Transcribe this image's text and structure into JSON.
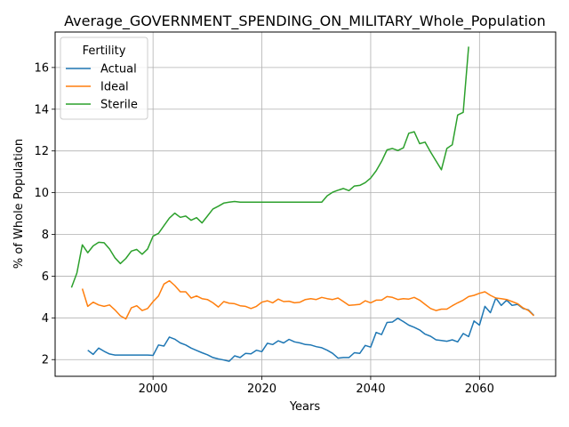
{
  "chart_data": {
    "type": "line",
    "title": "Average_GOVERNMENT_SPENDING_ON_MILITARY_Whole_Population",
    "xlabel": "Years",
    "ylabel": "% of Whole Population",
    "xlim": [
      1982,
      2074
    ],
    "ylim": [
      1.2,
      17.7
    ],
    "xticks": [
      2000,
      2020,
      2040,
      2060
    ],
    "yticks": [
      2,
      4,
      6,
      8,
      10,
      12,
      14,
      16
    ],
    "grid": true,
    "legend": {
      "title": "Fertility",
      "placement": "top-left"
    },
    "series": [
      {
        "name": "Actual",
        "color": "#1f77b4",
        "x": [
          1988,
          1989,
          1990,
          1991,
          1992,
          1993,
          1994,
          1995,
          1996,
          1997,
          1998,
          1999,
          2000,
          2001,
          2002,
          2003,
          2004,
          2005,
          2006,
          2007,
          2008,
          2009,
          2010,
          2011,
          2012,
          2013,
          2014,
          2015,
          2016,
          2017,
          2018,
          2019,
          2020,
          2021,
          2022,
          2023,
          2024,
          2025,
          2026,
          2027,
          2028,
          2029,
          2030,
          2031,
          2032,
          2033,
          2034,
          2035,
          2036,
          2037,
          2038,
          2039,
          2040,
          2041,
          2042,
          2043,
          2044,
          2045,
          2046,
          2047,
          2048,
          2049,
          2050,
          2051,
          2052,
          2053,
          2054,
          2055,
          2056,
          2057,
          2058,
          2059,
          2060,
          2061,
          2062,
          2063,
          2064,
          2065,
          2066,
          2067,
          2068,
          2069,
          2070
        ],
        "y": [
          2.45,
          2.25,
          2.55,
          2.4,
          2.27,
          2.22,
          2.22,
          2.22,
          2.22,
          2.22,
          2.22,
          2.22,
          2.2,
          2.7,
          2.65,
          3.08,
          2.98,
          2.8,
          2.7,
          2.55,
          2.44,
          2.33,
          2.23,
          2.1,
          2.03,
          1.98,
          1.92,
          2.18,
          2.1,
          2.3,
          2.28,
          2.45,
          2.38,
          2.78,
          2.72,
          2.9,
          2.8,
          2.97,
          2.85,
          2.8,
          2.72,
          2.7,
          2.62,
          2.57,
          2.45,
          2.3,
          2.07,
          2.1,
          2.1,
          2.33,
          2.3,
          2.68,
          2.6,
          3.3,
          3.2,
          3.78,
          3.8,
          3.98,
          3.82,
          3.65,
          3.55,
          3.42,
          3.22,
          3.12,
          2.95,
          2.92,
          2.88,
          2.95,
          2.85,
          3.25,
          3.1,
          3.85,
          3.65,
          4.55,
          4.25,
          4.95,
          4.6,
          4.85,
          4.6,
          4.65,
          4.45,
          4.38,
          4.12
        ]
      },
      {
        "name": "Ideal",
        "color": "#ff7f0e",
        "x": [
          1987,
          1988,
          1989,
          1990,
          1991,
          1992,
          1993,
          1994,
          1995,
          1996,
          1997,
          1998,
          1999,
          2000,
          2001,
          2002,
          2003,
          2004,
          2005,
          2006,
          2007,
          2008,
          2009,
          2010,
          2011,
          2012,
          2013,
          2014,
          2015,
          2016,
          2017,
          2018,
          2019,
          2020,
          2021,
          2022,
          2023,
          2024,
          2025,
          2026,
          2027,
          2028,
          2029,
          2030,
          2031,
          2032,
          2033,
          2034,
          2035,
          2036,
          2037,
          2038,
          2039,
          2040,
          2041,
          2042,
          2043,
          2044,
          2045,
          2046,
          2047,
          2048,
          2049,
          2050,
          2051,
          2052,
          2053,
          2054,
          2055,
          2056,
          2057,
          2058,
          2059,
          2060,
          2061,
          2062,
          2063,
          2064,
          2065,
          2066,
          2067,
          2068,
          2069,
          2070
        ],
        "y": [
          5.4,
          4.55,
          4.75,
          4.62,
          4.55,
          4.62,
          4.38,
          4.1,
          3.95,
          4.48,
          4.58,
          4.35,
          4.45,
          4.78,
          5.05,
          5.62,
          5.78,
          5.55,
          5.25,
          5.25,
          4.95,
          5.05,
          4.92,
          4.88,
          4.72,
          4.52,
          4.78,
          4.7,
          4.68,
          4.58,
          4.55,
          4.45,
          4.55,
          4.75,
          4.82,
          4.72,
          4.9,
          4.78,
          4.8,
          4.72,
          4.75,
          4.88,
          4.92,
          4.88,
          4.98,
          4.92,
          4.88,
          4.95,
          4.78,
          4.6,
          4.62,
          4.65,
          4.82,
          4.72,
          4.85,
          4.85,
          5.02,
          4.98,
          4.88,
          4.92,
          4.9,
          4.98,
          4.85,
          4.65,
          4.45,
          4.35,
          4.42,
          4.42,
          4.58,
          4.72,
          4.85,
          5.02,
          5.08,
          5.18,
          5.25,
          5.08,
          4.95,
          4.92,
          4.88,
          4.78,
          4.68,
          4.48,
          4.35,
          4.1
        ]
      },
      {
        "name": "Sterile",
        "color": "#2ca02c",
        "x": [
          1985,
          1986,
          1987,
          1988,
          1989,
          1990,
          1991,
          1992,
          1993,
          1994,
          1995,
          1996,
          1997,
          1998,
          1999,
          2000,
          2001,
          2002,
          2003,
          2004,
          2005,
          2006,
          2007,
          2008,
          2009,
          2010,
          2011,
          2012,
          2013,
          2014,
          2015,
          2016,
          2017,
          2018,
          2019,
          2020,
          2021,
          2022,
          2023,
          2024,
          2025,
          2026,
          2027,
          2028,
          2029,
          2030,
          2031,
          2032,
          2033,
          2034,
          2035,
          2036,
          2037,
          2038,
          2039,
          2040,
          2041,
          2042,
          2043,
          2044,
          2045,
          2046,
          2047,
          2048,
          2049,
          2050,
          2051,
          2052,
          2053,
          2054,
          2055,
          2056,
          2057,
          2058
        ],
        "y": [
          5.45,
          6.15,
          7.5,
          7.12,
          7.45,
          7.62,
          7.6,
          7.3,
          6.88,
          6.6,
          6.85,
          7.2,
          7.28,
          7.05,
          7.3,
          7.92,
          8.05,
          8.42,
          8.78,
          9.02,
          8.82,
          8.88,
          8.68,
          8.8,
          8.55,
          8.88,
          9.22,
          9.35,
          9.5,
          9.55,
          9.58,
          9.55,
          9.55,
          9.55,
          9.55,
          9.55,
          9.55,
          9.55,
          9.55,
          9.55,
          9.55,
          9.55,
          9.55,
          9.55,
          9.55,
          9.55,
          9.55,
          9.85,
          10.02,
          10.12,
          10.2,
          10.1,
          10.32,
          10.35,
          10.48,
          10.7,
          11.05,
          11.5,
          12.05,
          12.12,
          12.02,
          12.15,
          12.85,
          12.92,
          12.35,
          12.42,
          11.95,
          11.52,
          11.1,
          12.12,
          12.3,
          13.72,
          13.85,
          17.0
        ]
      }
    ]
  }
}
